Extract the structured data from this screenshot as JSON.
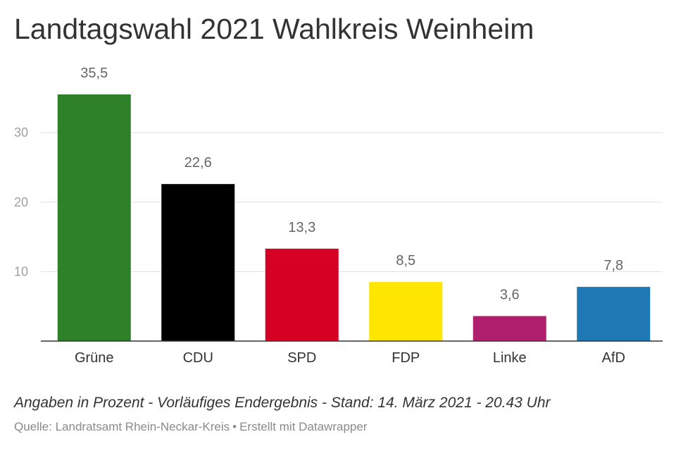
{
  "title": "Landtagswahl 2021 Wahlkreis Weinheim",
  "notes": "Angaben in Prozent - Vorläufiges Endergebnis - Stand: 14. März 2021 - 20.43 Uhr",
  "source": {
    "text": "Quelle: Landratsamt Rhein-Neckar-Kreis",
    "separator": "•",
    "credit": "Erstellt mit Datawrapper"
  },
  "chart_data": {
    "type": "bar",
    "title": "Landtagswahl 2021 Wahlkreis Weinheim",
    "categories": [
      "Grüne",
      "CDU",
      "SPD",
      "FDP",
      "Linke",
      "AfD"
    ],
    "values": [
      35.5,
      22.6,
      13.3,
      8.5,
      3.6,
      7.8
    ],
    "value_labels": [
      "35,5",
      "22,6",
      "13,3",
      "8,5",
      "3,6",
      "7,8"
    ],
    "colors": [
      "#2e8029",
      "#000000",
      "#d60024",
      "#ffe600",
      "#b01f6d",
      "#1f77b4"
    ],
    "yticks": [
      10,
      20,
      30
    ],
    "ylim": [
      0,
      35.5
    ],
    "grid": true,
    "xlabel": "",
    "ylabel": ""
  }
}
